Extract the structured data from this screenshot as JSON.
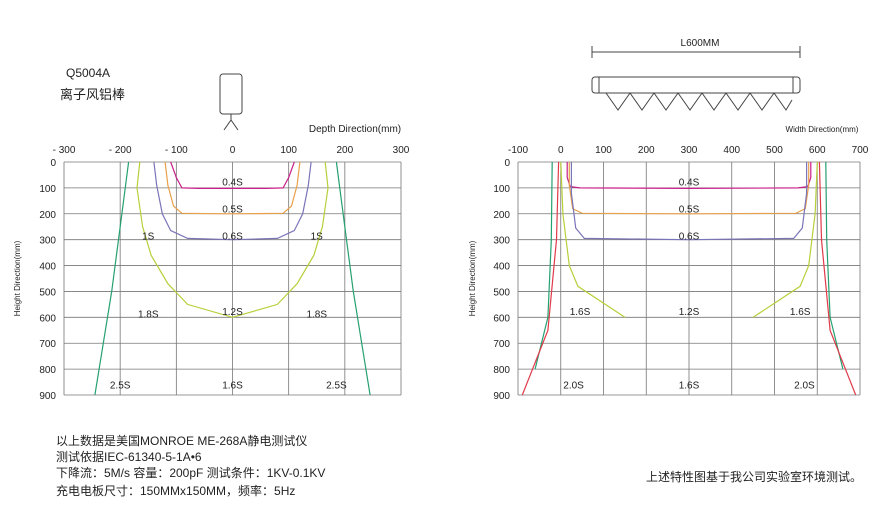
{
  "product": {
    "model": "Q5004A",
    "name": "离子风铝棒"
  },
  "notes": [
    "以上数据是美国MONROE ME-268A静电测试仪",
    "测试依据IEC-61340-5-1A•6",
    "下降流：5M/s 容量：200pF 测试条件：1KV-0.1KV",
    "充电电板尺寸：150MMx150MM，频率：5Hz"
  ],
  "footer_note": "上述特性图基于我公司实验室环境测试。",
  "width_diagram": {
    "length_label": "L600MM"
  },
  "colors": {
    "grid": "#777777",
    "purple": "#7a74b8",
    "orange": "#e8a04a",
    "magenta": "#c8208a",
    "yellow_green": "#b8cf3a",
    "green": "#25a070",
    "red": "#e03a4a"
  },
  "chart_data": [
    {
      "type": "line",
      "title": "",
      "xlabel": "Depth Direction(mm)",
      "ylabel": "Height Direction(mm)",
      "x_ticks": [
        "- 300",
        "- 200",
        "- 100",
        "0",
        "100",
        "200",
        "300"
      ],
      "y_ticks": [
        "0",
        "100",
        "200",
        "300",
        "400",
        "500",
        "600",
        "700",
        "800",
        "900"
      ],
      "xlim": [
        -300,
        300
      ],
      "ylim": [
        0,
        900
      ],
      "y_inverted": true,
      "grid": true,
      "annotations": [
        {
          "text": "0.4S",
          "x": 0,
          "y": 75
        },
        {
          "text": "0.5S",
          "x": 0,
          "y": 180
        },
        {
          "text": "0.6S",
          "x": 0,
          "y": 283
        },
        {
          "text": "1S",
          "x": -150,
          "y": 283
        },
        {
          "text": "1S",
          "x": 150,
          "y": 283
        },
        {
          "text": "1.2S",
          "x": 0,
          "y": 575
        },
        {
          "text": "1.8S",
          "x": -150,
          "y": 585
        },
        {
          "text": "1.8S",
          "x": 150,
          "y": 585
        },
        {
          "text": "2.5S",
          "x": -200,
          "y": 860
        },
        {
          "text": "1.6S",
          "x": 0,
          "y": 860
        },
        {
          "text": "2.5S",
          "x": 185,
          "y": 860
        }
      ],
      "series": [
        {
          "color": "magenta",
          "points": [
            [
              -110,
              0
            ],
            [
              -100,
              60
            ],
            [
              -90,
              100
            ],
            [
              -60,
              102
            ],
            [
              0,
              102
            ],
            [
              60,
              102
            ],
            [
              90,
              100
            ],
            [
              100,
              60
            ],
            [
              110,
              0
            ]
          ]
        },
        {
          "color": "orange",
          "points": [
            [
              -120,
              0
            ],
            [
              -115,
              90
            ],
            [
              -105,
              170
            ],
            [
              -90,
              198
            ],
            [
              0,
              200
            ],
            [
              90,
              198
            ],
            [
              105,
              170
            ],
            [
              115,
              90
            ],
            [
              120,
              0
            ]
          ]
        },
        {
          "color": "purple",
          "points": [
            [
              -140,
              0
            ],
            [
              -135,
              90
            ],
            [
              -125,
              200
            ],
            [
              -110,
              265
            ],
            [
              -80,
              295
            ],
            [
              0,
              300
            ],
            [
              80,
              295
            ],
            [
              110,
              265
            ],
            [
              125,
              200
            ],
            [
              135,
              90
            ],
            [
              140,
              0
            ]
          ]
        },
        {
          "color": "yellow_green",
          "points": [
            [
              -165,
              0
            ],
            [
              -170,
              100
            ],
            [
              -160,
              250
            ],
            [
              -145,
              360
            ],
            [
              -115,
              470
            ],
            [
              -80,
              550
            ],
            [
              0,
              600
            ],
            [
              80,
              550
            ],
            [
              115,
              470
            ],
            [
              145,
              360
            ],
            [
              160,
              250
            ],
            [
              170,
              100
            ],
            [
              165,
              0
            ]
          ]
        },
        {
          "color": "green",
          "points": [
            [
              -185,
              0
            ],
            [
              -200,
              250
            ],
            [
              -215,
              500
            ],
            [
              -230,
              700
            ],
            [
              -245,
              900
            ]
          ]
        },
        {
          "color": "green",
          "points": [
            [
              185,
              0
            ],
            [
              200,
              250
            ],
            [
              215,
              500
            ],
            [
              230,
              700
            ],
            [
              245,
              900
            ]
          ]
        }
      ]
    },
    {
      "type": "line",
      "title": "",
      "xlabel": "Width Direction(mm)",
      "ylabel": "Height Direction(mm)",
      "x_ticks": [
        "-100",
        "0",
        "100",
        "200",
        "300",
        "400",
        "500",
        "600",
        "700"
      ],
      "y_ticks": [
        "0",
        "100",
        "200",
        "300",
        "400",
        "500",
        "600",
        "700",
        "800",
        "900"
      ],
      "xlim": [
        -100,
        700
      ],
      "ylim": [
        0,
        900
      ],
      "y_inverted": true,
      "grid": true,
      "annotations": [
        {
          "text": "0.4S",
          "x": 300,
          "y": 75
        },
        {
          "text": "0.5S",
          "x": 300,
          "y": 180
        },
        {
          "text": "0.6S",
          "x": 300,
          "y": 283
        },
        {
          "text": "1.6S",
          "x": 45,
          "y": 575
        },
        {
          "text": "1.2S",
          "x": 300,
          "y": 575
        },
        {
          "text": "1.6S",
          "x": 560,
          "y": 575
        },
        {
          "text": "2.0S",
          "x": 30,
          "y": 860
        },
        {
          "text": "1.6S",
          "x": 300,
          "y": 860
        },
        {
          "text": "2.0S",
          "x": 570,
          "y": 860
        }
      ],
      "series": [
        {
          "color": "magenta",
          "points": [
            [
              15,
              0
            ],
            [
              15,
              60
            ],
            [
              22,
              95
            ],
            [
              45,
              100
            ],
            [
              300,
              102
            ],
            [
              555,
              100
            ],
            [
              578,
              95
            ],
            [
              585,
              60
            ],
            [
              585,
              0
            ]
          ]
        },
        {
          "color": "orange",
          "points": [
            [
              20,
              0
            ],
            [
              20,
              90
            ],
            [
              28,
              180
            ],
            [
              50,
              198
            ],
            [
              300,
              200
            ],
            [
              550,
              198
            ],
            [
              572,
              180
            ],
            [
              580,
              90
            ],
            [
              580,
              0
            ]
          ]
        },
        {
          "color": "purple",
          "points": [
            [
              25,
              0
            ],
            [
              25,
              120
            ],
            [
              35,
              255
            ],
            [
              55,
              295
            ],
            [
              300,
              300
            ],
            [
              545,
              295
            ],
            [
              565,
              255
            ],
            [
              575,
              120
            ],
            [
              575,
              0
            ]
          ]
        },
        {
          "color": "yellow_green",
          "points": [
            [
              0,
              0
            ],
            [
              5,
              200
            ],
            [
              20,
              400
            ],
            [
              40,
              480
            ],
            [
              150,
              600
            ]
          ]
        },
        {
          "color": "yellow_green",
          "points": [
            [
              600,
              0
            ],
            [
              595,
              200
            ],
            [
              580,
              400
            ],
            [
              560,
              480
            ],
            [
              450,
              600
            ]
          ]
        },
        {
          "color": "green",
          "points": [
            [
              -20,
              0
            ],
            [
              -22,
              300
            ],
            [
              -30,
              600
            ],
            [
              -60,
              800
            ]
          ]
        },
        {
          "color": "green",
          "points": [
            [
              620,
              0
            ],
            [
              622,
              300
            ],
            [
              630,
              600
            ],
            [
              660,
              800
            ]
          ]
        },
        {
          "color": "red",
          "points": [
            [
              -5,
              0
            ],
            [
              -10,
              300
            ],
            [
              -30,
              650
            ],
            [
              -90,
              900
            ]
          ]
        },
        {
          "color": "red",
          "points": [
            [
              605,
              0
            ],
            [
              610,
              300
            ],
            [
              630,
              650
            ],
            [
              690,
              900
            ]
          ]
        }
      ]
    }
  ]
}
